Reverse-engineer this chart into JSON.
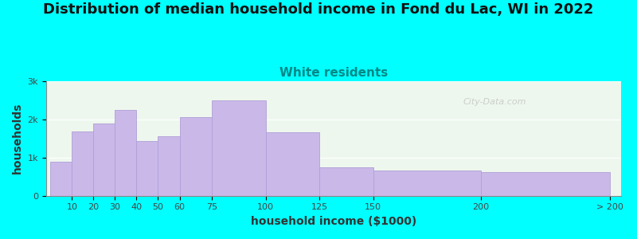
{
  "title": "Distribution of median household income in Fond du Lac, WI in 2022",
  "subtitle": "White residents",
  "xlabel": "household income ($1000)",
  "ylabel": "households",
  "bar_color": "#c9b8e8",
  "bar_edge_color": "#b0a0d8",
  "background_color": "#00ffff",
  "plot_bg_color": "#eef7ee",
  "title_fontsize": 13,
  "subtitle_fontsize": 11,
  "subtitle_color": "#008888",
  "categories": [
    "10",
    "20",
    "30",
    "40",
    "50",
    "60",
    "75",
    "100",
    "125",
    "150",
    "200",
    "> 200"
  ],
  "values": [
    880,
    1680,
    1880,
    2250,
    1420,
    1550,
    2050,
    2500,
    1650,
    750,
    650,
    620
  ],
  "bar_lefts": [
    0,
    10,
    20,
    30,
    40,
    50,
    60,
    75,
    100,
    125,
    150,
    200
  ],
  "bar_widths": [
    10,
    10,
    10,
    10,
    10,
    10,
    15,
    25,
    25,
    25,
    50,
    60
  ],
  "xtick_positions": [
    10,
    20,
    30,
    40,
    50,
    60,
    75,
    100,
    125,
    150,
    200,
    260
  ],
  "xlim": [
    -2,
    265
  ],
  "ylim": [
    0,
    3000
  ],
  "yticks": [
    0,
    1000,
    2000,
    3000
  ],
  "ytick_labels": [
    "0",
    "1k",
    "2k",
    "3k"
  ],
  "watermark": "City-Data.com"
}
